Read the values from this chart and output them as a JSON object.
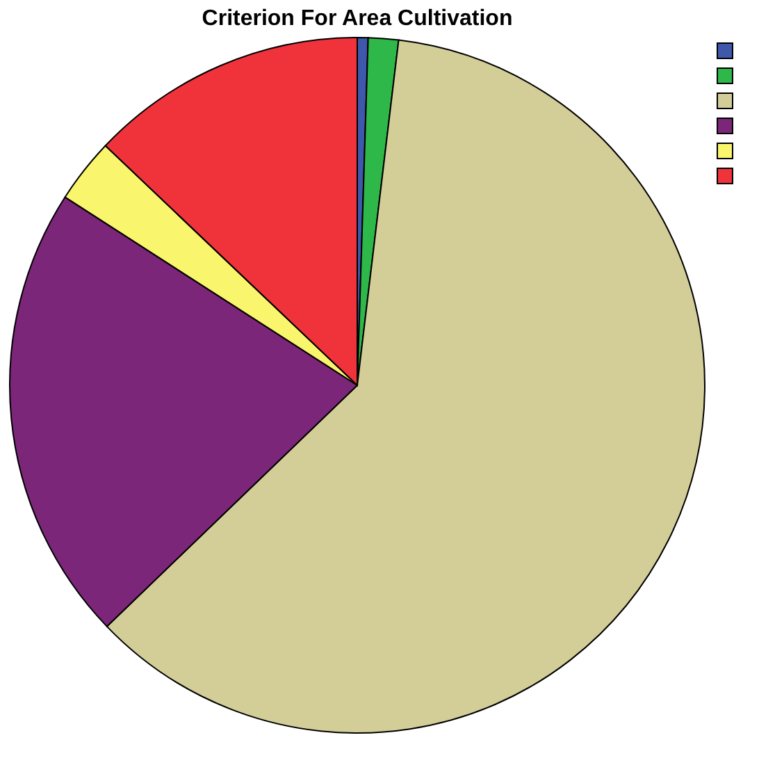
{
  "chart_data": {
    "type": "pie",
    "title": "Criterion For Area Cultivation",
    "categories": [
      null,
      null,
      null,
      null,
      null,
      null
    ],
    "values": [
      0.5,
      1.4,
      60.9,
      21.3,
      3.0,
      12.9
    ],
    "colors": [
      "#3e58ac",
      "#2eb84a",
      "#d3ce98",
      "#7b2679",
      "#f9f56c",
      "#f0333b"
    ]
  }
}
